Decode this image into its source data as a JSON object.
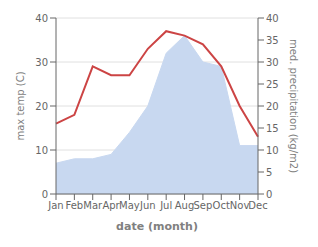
{
  "chart_data": {
    "type": "line",
    "categories": [
      "Jan",
      "Feb",
      "Mar",
      "Apr",
      "May",
      "Jun",
      "Jul",
      "Aug",
      "Sep",
      "Oct",
      "Nov",
      "Dec"
    ],
    "series": [
      {
        "type": "area",
        "axis": "y2",
        "color": "#c8d8f0",
        "values": [
          7,
          8,
          8,
          9,
          14,
          20,
          32,
          36,
          30,
          29,
          11,
          11
        ]
      },
      {
        "type": "line",
        "color": "#cc4444",
        "values": [
          16,
          18,
          29,
          27,
          27,
          33,
          37,
          36,
          34,
          29,
          20,
          13
        ]
      }
    ],
    "xlabel": "date (month)",
    "ylabel": "max temp (C)",
    "y2label": "med. precipitation (kg/m2)",
    "ylim": [
      0,
      40
    ],
    "yticks": [
      0,
      10,
      20,
      30,
      40
    ],
    "y2lim": [
      0,
      40
    ],
    "y2ticks": [
      0,
      5,
      10,
      15,
      20,
      25,
      30,
      35,
      40
    ],
    "grid": true
  }
}
